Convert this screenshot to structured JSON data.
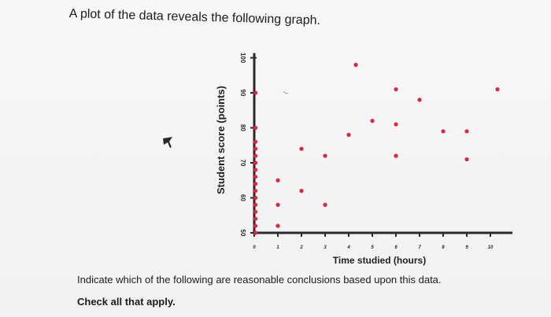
{
  "intro_text": "A plot of the data reveals the following graph.",
  "question_text": "Indicate which of the following are reasonable conclusions based upon this data.",
  "check_text": "Check all that apply.",
  "colors": {
    "point": "#e0233f",
    "axis": "#2a2a2a",
    "text": "#1c1c1c"
  },
  "chart_data": {
    "type": "scatter",
    "title": "",
    "xlabel": "Time studied (hours)",
    "ylabel": "Student score (points)",
    "xlim": [
      0,
      10.6
    ],
    "ylim": [
      50,
      100
    ],
    "x_ticks": [
      0,
      1,
      2,
      3,
      4,
      5,
      6,
      7,
      8,
      9,
      10
    ],
    "y_ticks": [
      50,
      60,
      70,
      80,
      90,
      100
    ],
    "grid": false,
    "legend": "none",
    "series": [
      {
        "points": [
          {
            "x": 0,
            "y": 50
          },
          {
            "x": 0,
            "y": 52
          },
          {
            "x": 0,
            "y": 54
          },
          {
            "x": 0,
            "y": 56
          },
          {
            "x": 0,
            "y": 58
          },
          {
            "x": 0,
            "y": 60
          },
          {
            "x": 0,
            "y": 62
          },
          {
            "x": 0,
            "y": 64
          },
          {
            "x": 0,
            "y": 66
          },
          {
            "x": 0,
            "y": 68
          },
          {
            "x": 0,
            "y": 70
          },
          {
            "x": 0,
            "y": 72
          },
          {
            "x": 0,
            "y": 74
          },
          {
            "x": 0,
            "y": 76
          },
          {
            "x": 0,
            "y": 80
          },
          {
            "x": 0,
            "y": 90
          },
          {
            "x": 1,
            "y": 52
          },
          {
            "x": 1,
            "y": 58
          },
          {
            "x": 1,
            "y": 65
          },
          {
            "x": 2,
            "y": 62
          },
          {
            "x": 2,
            "y": 74
          },
          {
            "x": 3,
            "y": 58
          },
          {
            "x": 3,
            "y": 72
          },
          {
            "x": 4,
            "y": 78
          },
          {
            "x": 4.3,
            "y": 98
          },
          {
            "x": 5,
            "y": 82
          },
          {
            "x": 6,
            "y": 72
          },
          {
            "x": 6,
            "y": 81
          },
          {
            "x": 6,
            "y": 91
          },
          {
            "x": 7,
            "y": 88
          },
          {
            "x": 8,
            "y": 79
          },
          {
            "x": 9,
            "y": 79
          },
          {
            "x": 9,
            "y": 71
          },
          {
            "x": 10.3,
            "y": 91
          }
        ]
      }
    ]
  }
}
